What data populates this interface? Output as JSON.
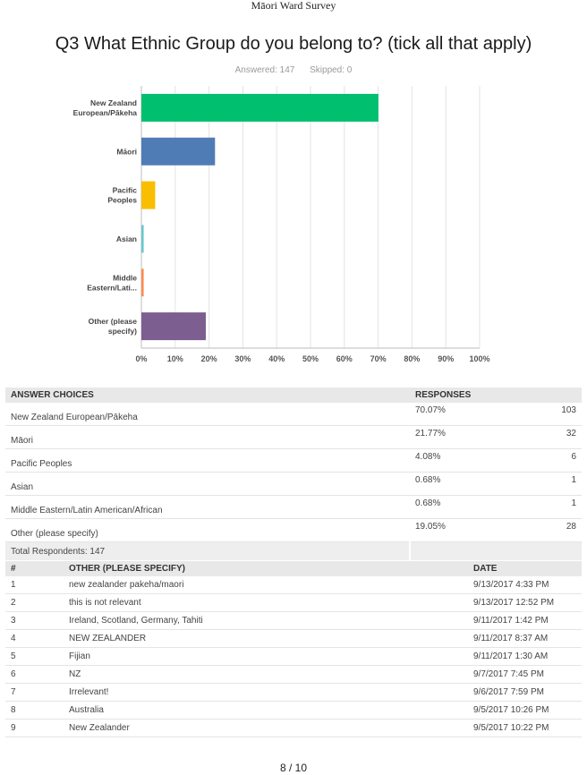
{
  "document": {
    "header": "Māori Ward Survey",
    "page_number": "8 / 10"
  },
  "question": {
    "title": "Q3 What Ethnic Group do you belong to? (tick all that apply)",
    "answered": "Answered: 147",
    "skipped": "Skipped: 0"
  },
  "chart_data": {
    "type": "bar",
    "orientation": "horizontal",
    "categories": [
      "New Zealand European/Pākeha",
      "Māori",
      "Pacific Peoples",
      "Asian",
      "Middle Eastern/Lati...",
      "Other (please specify)"
    ],
    "values": [
      70.07,
      21.77,
      4.08,
      0.68,
      0.68,
      19.05
    ],
    "colors": [
      "#00bf6f",
      "#507cb6",
      "#f9be00",
      "#6bc8cd",
      "#ff8b4f",
      "#7d5e90"
    ],
    "xlim": [
      0,
      100
    ],
    "ticks": [
      "0%",
      "10%",
      "20%",
      "30%",
      "40%",
      "50%",
      "60%",
      "70%",
      "80%",
      "90%",
      "100%"
    ],
    "grid": true,
    "xlabel": "",
    "ylabel": ""
  },
  "answers_table": {
    "headers": [
      "ANSWER CHOICES",
      "RESPONSES"
    ],
    "rows": [
      {
        "choice": "New Zealand European/Pākeha",
        "percent": "70.07%",
        "count": "103"
      },
      {
        "choice": "Māori",
        "percent": "21.77%",
        "count": "32"
      },
      {
        "choice": "Pacific Peoples",
        "percent": "4.08%",
        "count": "6"
      },
      {
        "choice": "Asian",
        "percent": "0.68%",
        "count": "1"
      },
      {
        "choice": "Middle Eastern/Latin American/African",
        "percent": "0.68%",
        "count": "1"
      },
      {
        "choice": "Other (please specify)",
        "percent": "19.05%",
        "count": "28"
      }
    ],
    "total": "Total Respondents: 147"
  },
  "other_table": {
    "headers": [
      "#",
      "OTHER (PLEASE SPECIFY)",
      "DATE"
    ],
    "rows": [
      {
        "num": "1",
        "text": "new zealander pakeha/maori",
        "date": "9/13/2017 4:33 PM"
      },
      {
        "num": "2",
        "text": "this is not relevant",
        "date": "9/13/2017 12:52 PM"
      },
      {
        "num": "3",
        "text": "Ireland, Scotland, Germany, Tahiti",
        "date": "9/11/2017 1:42 PM"
      },
      {
        "num": "4",
        "text": "NEW ZEALANDER",
        "date": "9/11/2017 8:37 AM"
      },
      {
        "num": "5",
        "text": "Fijian",
        "date": "9/11/2017 1:30 AM"
      },
      {
        "num": "6",
        "text": "NZ",
        "date": "9/7/2017 7:45 PM"
      },
      {
        "num": "7",
        "text": "Irrelevant!",
        "date": "9/6/2017 7:59 PM"
      },
      {
        "num": "8",
        "text": "Australia",
        "date": "9/5/2017 10:26 PM"
      },
      {
        "num": "9",
        "text": "New Zealander",
        "date": "9/5/2017 10:22 PM"
      }
    ]
  }
}
